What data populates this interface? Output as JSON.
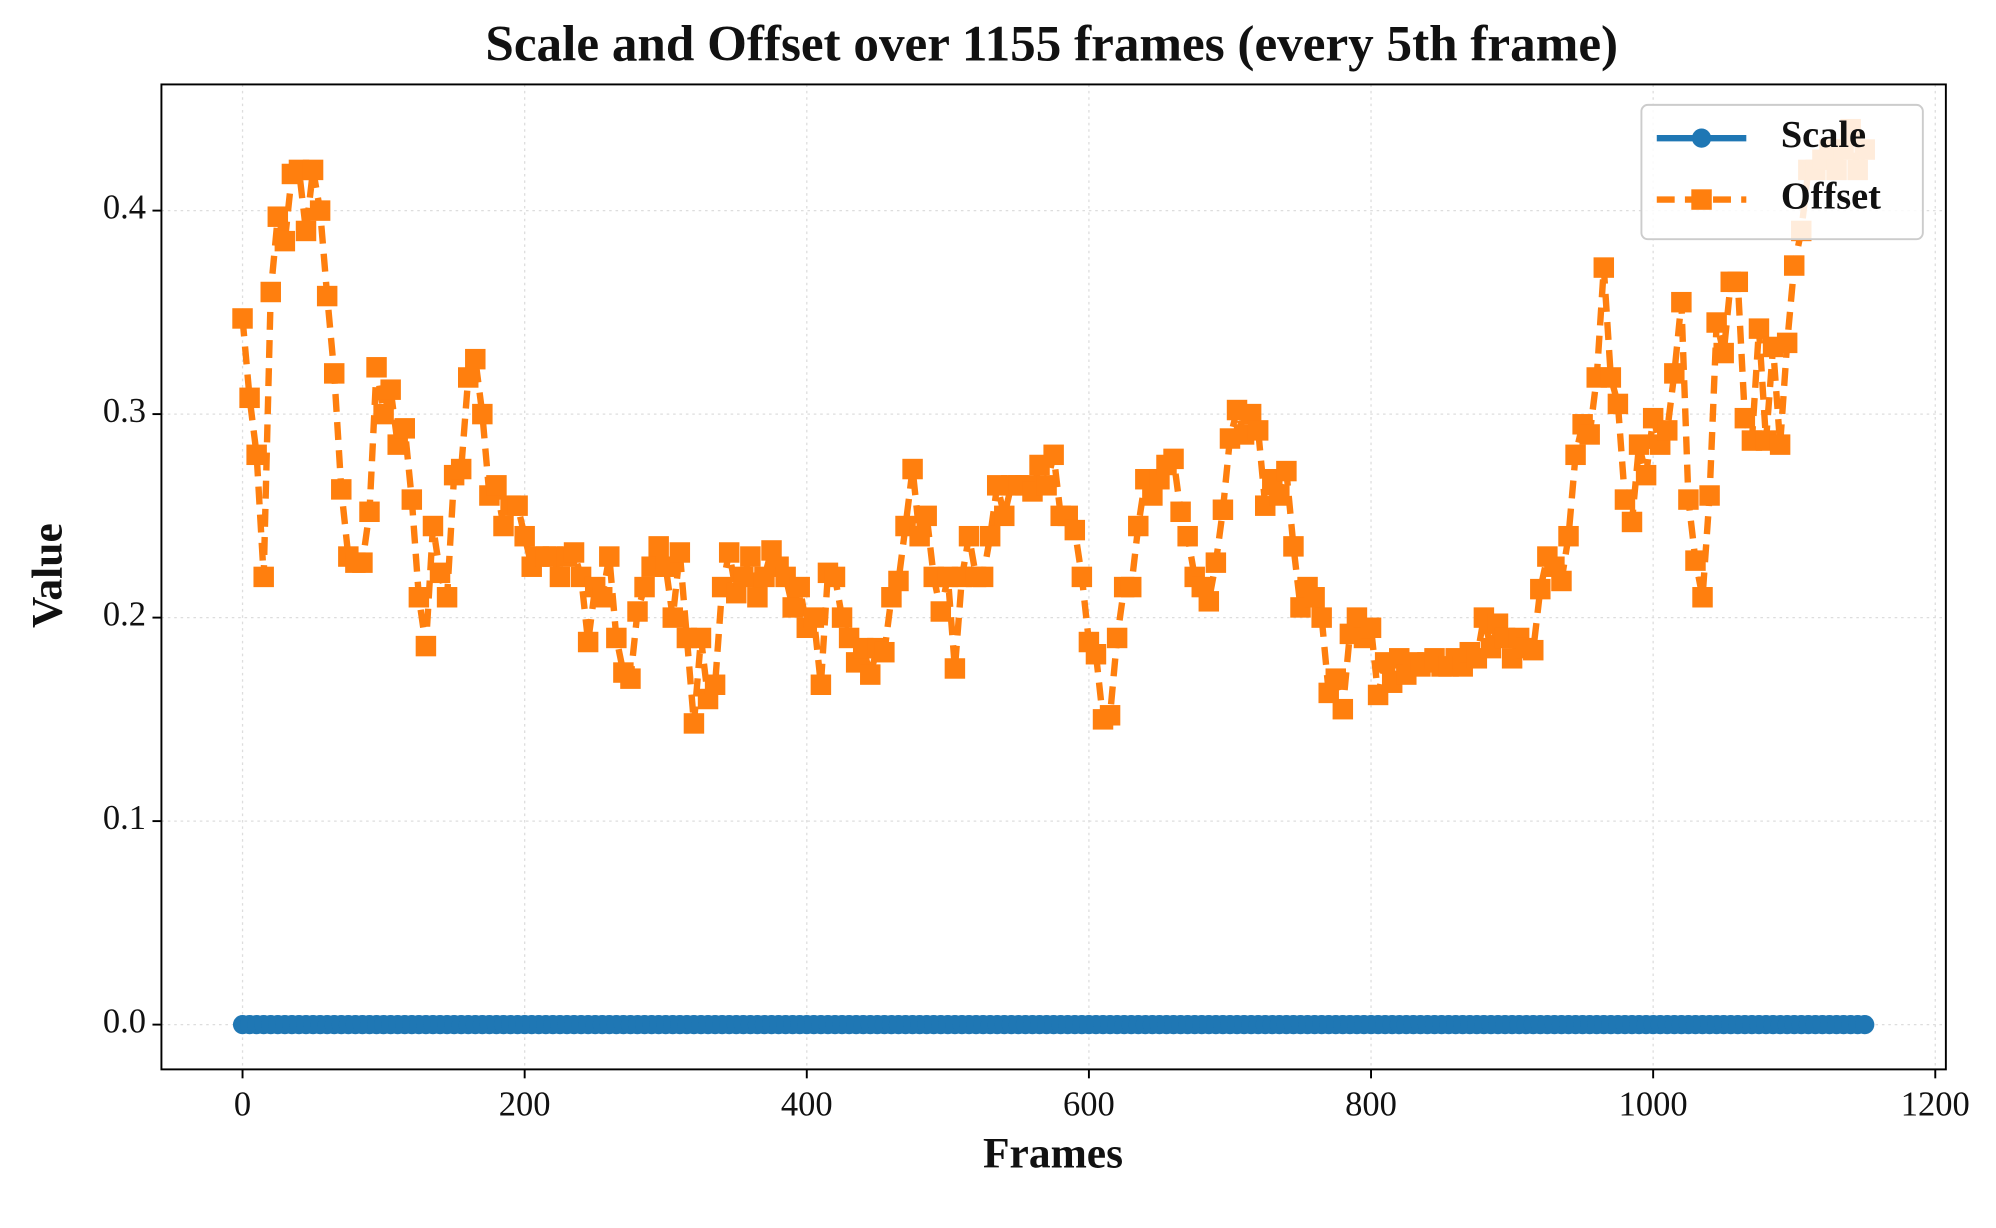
{
  "chart_data": {
    "type": "line",
    "title": "Scale and Offset over 1155 frames (every 5th frame)",
    "x_label": "Frames",
    "y_label": "Value",
    "x": [
      0,
      5,
      10,
      15,
      20,
      25,
      30,
      35,
      40,
      45,
      50,
      55,
      60,
      65,
      70,
      75,
      80,
      85,
      90,
      95,
      100,
      105,
      110,
      115,
      120,
      125,
      130,
      135,
      140,
      145,
      150,
      155,
      160,
      165,
      170,
      175,
      180,
      185,
      190,
      195,
      200,
      205,
      210,
      215,
      220,
      225,
      230,
      235,
      240,
      245,
      250,
      255,
      260,
      265,
      270,
      275,
      280,
      285,
      290,
      295,
      300,
      305,
      310,
      315,
      320,
      325,
      330,
      335,
      340,
      345,
      350,
      355,
      360,
      365,
      370,
      375,
      380,
      385,
      390,
      395,
      400,
      405,
      410,
      415,
      420,
      425,
      430,
      435,
      440,
      445,
      450,
      455,
      460,
      465,
      470,
      475,
      480,
      485,
      490,
      495,
      500,
      505,
      510,
      515,
      520,
      525,
      530,
      535,
      540,
      545,
      550,
      555,
      560,
      565,
      570,
      575,
      580,
      585,
      590,
      595,
      600,
      605,
      610,
      615,
      620,
      625,
      630,
      635,
      640,
      645,
      650,
      655,
      660,
      665,
      670,
      675,
      680,
      685,
      690,
      695,
      700,
      705,
      710,
      715,
      720,
      725,
      730,
      735,
      740,
      745,
      750,
      755,
      760,
      765,
      770,
      775,
      780,
      785,
      790,
      795,
      800,
      805,
      810,
      815,
      820,
      825,
      830,
      835,
      840,
      845,
      850,
      855,
      860,
      865,
      870,
      875,
      880,
      885,
      890,
      895,
      900,
      905,
      910,
      915,
      920,
      925,
      930,
      935,
      940,
      945,
      950,
      955,
      960,
      965,
      970,
      975,
      980,
      985,
      990,
      995,
      1000,
      1005,
      1010,
      1015,
      1020,
      1025,
      1030,
      1035,
      1040,
      1045,
      1050,
      1055,
      1060,
      1065,
      1070,
      1075,
      1080,
      1085,
      1090,
      1095,
      1100,
      1105,
      1110,
      1115,
      1120,
      1125,
      1130,
      1135,
      1140,
      1145,
      1150
    ],
    "series": [
      {
        "name": "Scale",
        "color": "#1f77b4",
        "marker": "circle",
        "dash": false,
        "values": [
          0,
          0,
          0,
          0,
          0,
          0,
          0,
          0,
          0,
          0,
          0,
          0,
          0,
          0,
          0,
          0,
          0,
          0,
          0,
          0,
          0,
          0,
          0,
          0,
          0,
          0,
          0,
          0,
          0,
          0,
          0,
          0,
          0,
          0,
          0,
          0,
          0,
          0,
          0,
          0,
          0,
          0,
          0,
          0,
          0,
          0,
          0,
          0,
          0,
          0,
          0,
          0,
          0,
          0,
          0,
          0,
          0,
          0,
          0,
          0,
          0,
          0,
          0,
          0,
          0,
          0,
          0,
          0,
          0,
          0,
          0,
          0,
          0,
          0,
          0,
          0,
          0,
          0,
          0,
          0,
          0,
          0,
          0,
          0,
          0,
          0,
          0,
          0,
          0,
          0,
          0,
          0,
          0,
          0,
          0,
          0,
          0,
          0,
          0,
          0,
          0,
          0,
          0,
          0,
          0,
          0,
          0,
          0,
          0,
          0,
          0,
          0,
          0,
          0,
          0,
          0,
          0,
          0,
          0,
          0,
          0,
          0,
          0,
          0,
          0,
          0,
          0,
          0,
          0,
          0,
          0,
          0,
          0,
          0,
          0,
          0,
          0,
          0,
          0,
          0,
          0,
          0,
          0,
          0,
          0,
          0,
          0,
          0,
          0,
          0,
          0,
          0,
          0,
          0,
          0,
          0,
          0,
          0,
          0,
          0,
          0,
          0,
          0,
          0,
          0,
          0,
          0,
          0,
          0,
          0,
          0,
          0,
          0,
          0,
          0,
          0,
          0,
          0,
          0,
          0,
          0,
          0,
          0,
          0,
          0,
          0,
          0,
          0,
          0,
          0,
          0,
          0,
          0,
          0,
          0,
          0,
          0,
          0,
          0,
          0,
          0,
          0,
          0,
          0,
          0,
          0,
          0,
          0,
          0,
          0,
          0,
          0,
          0,
          0,
          0,
          0,
          0,
          0,
          0,
          0,
          0,
          0,
          0,
          0,
          0,
          0,
          0,
          0,
          0,
          0,
          0
        ]
      },
      {
        "name": "Offset",
        "color": "#ff7f0e",
        "marker": "square",
        "dash": true,
        "values": [
          0.347,
          0.308,
          0.28,
          0.22,
          0.36,
          0.397,
          0.385,
          0.418,
          0.42,
          0.39,
          0.42,
          0.4,
          0.358,
          0.32,
          0.263,
          0.23,
          0.227,
          0.227,
          0.252,
          0.323,
          0.3,
          0.312,
          0.285,
          0.293,
          0.258,
          0.21,
          0.186,
          0.245,
          0.222,
          0.21,
          0.27,
          0.273,
          0.318,
          0.327,
          0.3,
          0.26,
          0.265,
          0.245,
          0.255,
          0.255,
          0.24,
          0.225,
          0.23,
          0.23,
          0.23,
          0.22,
          0.23,
          0.232,
          0.22,
          0.188,
          0.215,
          0.21,
          0.23,
          0.19,
          0.173,
          0.17,
          0.203,
          0.215,
          0.225,
          0.235,
          0.225,
          0.2,
          0.232,
          0.19,
          0.148,
          0.19,
          0.16,
          0.167,
          0.215,
          0.232,
          0.212,
          0.22,
          0.23,
          0.21,
          0.22,
          0.233,
          0.225,
          0.22,
          0.205,
          0.215,
          0.195,
          0.2,
          0.167,
          0.222,
          0.22,
          0.2,
          0.19,
          0.178,
          0.185,
          0.172,
          0.185,
          0.183,
          0.21,
          0.218,
          0.245,
          0.273,
          0.24,
          0.25,
          0.22,
          0.203,
          0.22,
          0.175,
          0.22,
          0.24,
          0.22,
          0.22,
          0.24,
          0.265,
          0.25,
          0.265,
          0.265,
          0.265,
          0.262,
          0.275,
          0.265,
          0.28,
          0.25,
          0.25,
          0.243,
          0.22,
          0.188,
          0.182,
          0.15,
          0.152,
          0.19,
          0.215,
          0.215,
          0.245,
          0.268,
          0.26,
          0.268,
          0.275,
          0.278,
          0.252,
          0.24,
          0.22,
          0.215,
          0.208,
          0.227,
          0.253,
          0.288,
          0.302,
          0.29,
          0.3,
          0.292,
          0.255,
          0.268,
          0.26,
          0.272,
          0.235,
          0.205,
          0.215,
          0.21,
          0.2,
          0.163,
          0.17,
          0.155,
          0.192,
          0.2,
          0.19,
          0.195,
          0.162,
          0.178,
          0.168,
          0.18,
          0.172,
          0.178,
          0.176,
          0.178,
          0.18,
          0.176,
          0.176,
          0.18,
          0.176,
          0.183,
          0.18,
          0.2,
          0.185,
          0.197,
          0.19,
          0.18,
          0.19,
          0.185,
          0.184,
          0.214,
          0.23,
          0.225,
          0.218,
          0.24,
          0.28,
          0.295,
          0.29,
          0.318,
          0.372,
          0.318,
          0.305,
          0.258,
          0.247,
          0.285,
          0.27,
          0.298,
          0.285,
          0.292,
          0.32,
          0.355,
          0.258,
          0.228,
          0.21,
          0.26,
          0.345,
          0.33,
          0.365,
          0.365,
          0.298,
          0.287,
          0.342,
          0.287,
          0.333,
          0.285,
          0.335,
          0.373,
          0.39,
          0.42,
          0.42,
          0.425,
          0.43,
          0.42,
          0.43,
          0.44,
          0.42,
          0.43
        ]
      }
    ],
    "xlim": [
      -57.5,
      1207.5
    ],
    "xticks": [
      0,
      200,
      400,
      600,
      800,
      1000,
      1200
    ],
    "ylim": [
      -0.022,
      0.462
    ],
    "yticks": [
      {
        "value": 0,
        "label": "0.0"
      },
      0.1,
      0.2,
      0.3,
      0.4
    ],
    "grid": true,
    "legend": "upper right"
  }
}
